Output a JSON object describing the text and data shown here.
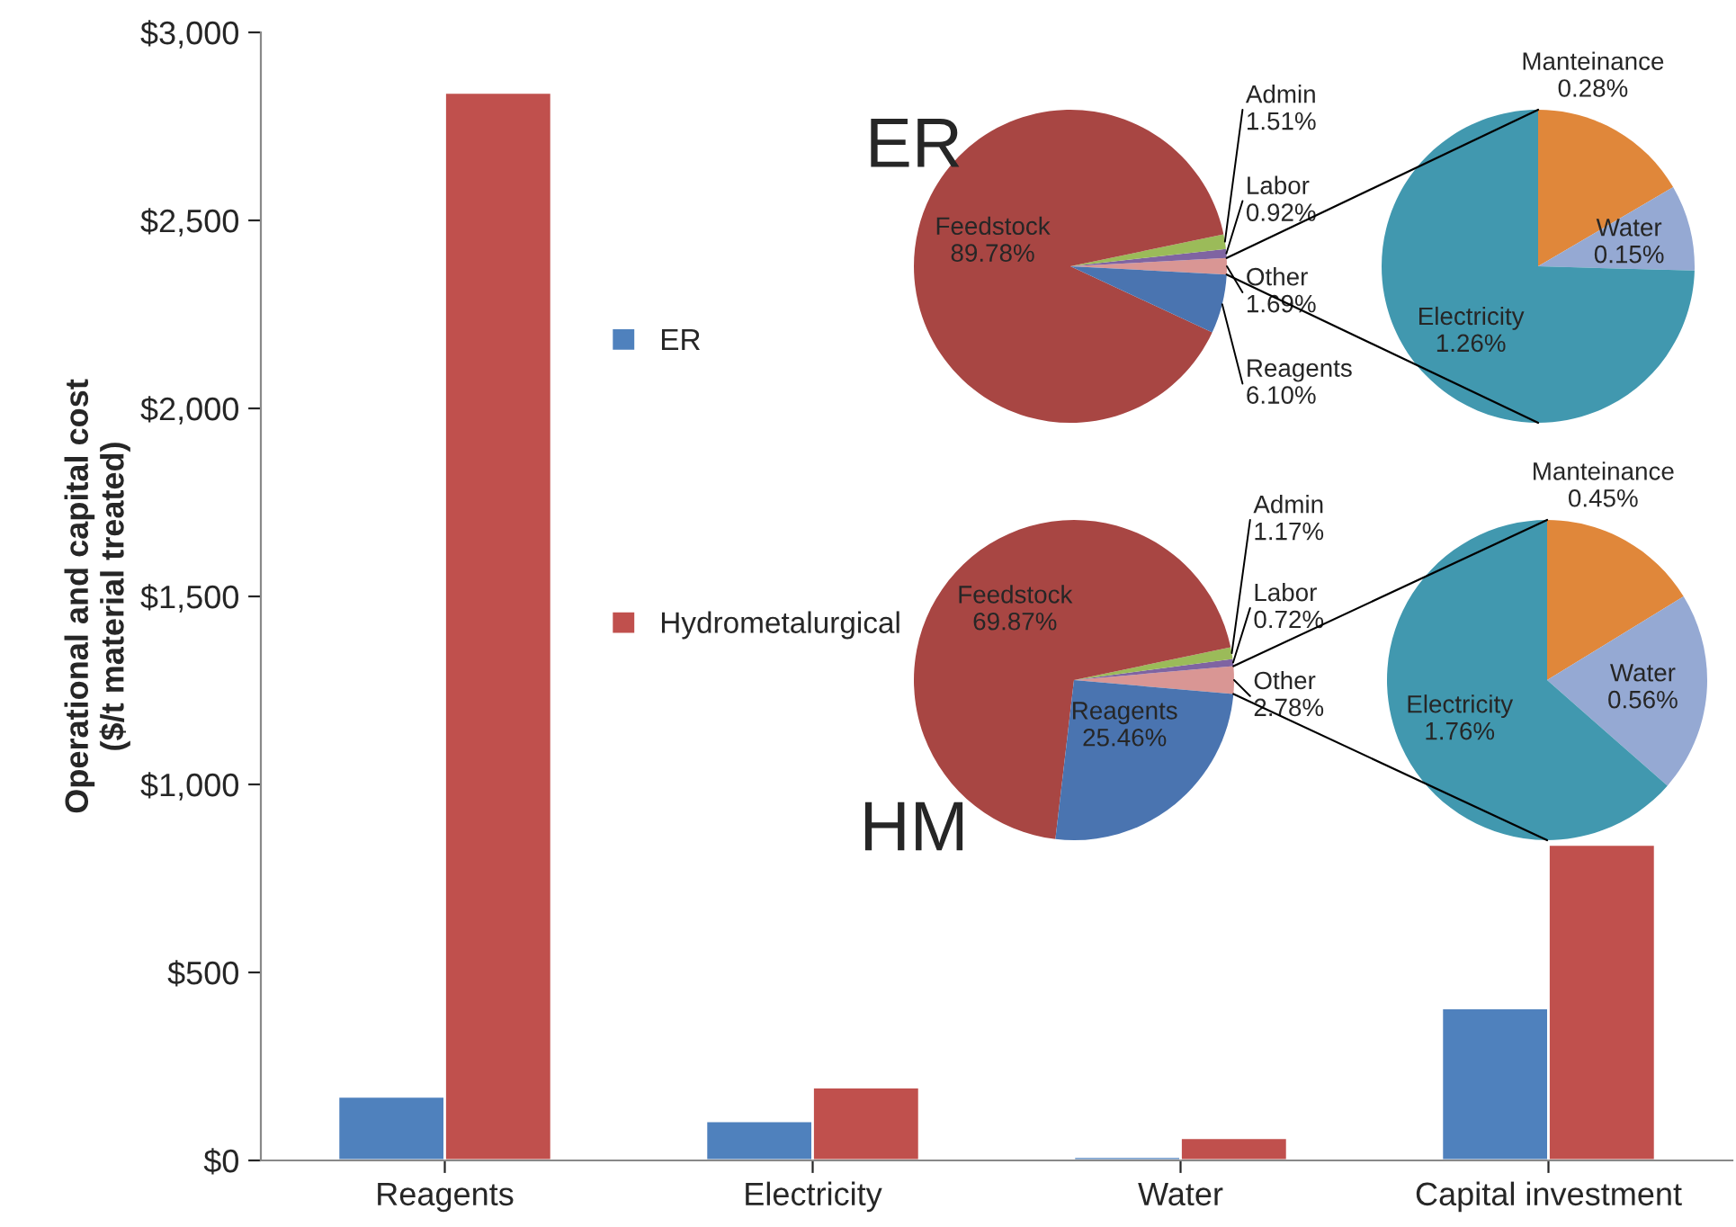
{
  "chart_data": [
    {
      "type": "bar",
      "ylabel": "Operational and capital cost\n($/t material treated)",
      "categories": [
        "Reagents",
        "Electricity",
        "Water",
        "Capital investment"
      ],
      "series": [
        {
          "name": "ER",
          "color": "#4f81bd",
          "values": [
            170,
            105,
            10,
            405
          ]
        },
        {
          "name": "Hydrometalurgical",
          "color": "#c0504d",
          "values": [
            2840,
            195,
            60,
            840
          ]
        }
      ],
      "ylim": [
        0,
        3000
      ],
      "yticks": [
        {
          "value": 0,
          "label": "$0"
        },
        {
          "value": 500,
          "label": "$500"
        },
        {
          "value": 1000,
          "label": "$1,000"
        },
        {
          "value": 1500,
          "label": "$1,500"
        },
        {
          "value": 2000,
          "label": "$2,000"
        },
        {
          "value": 2500,
          "label": "$2,500"
        },
        {
          "value": 3000,
          "label": "$3,000"
        }
      ],
      "legend": "left"
    },
    {
      "type": "pie",
      "title": "ER",
      "categories": [
        "Other",
        "Labor",
        "Admin",
        "Feedstock",
        "Reagents"
      ],
      "values": [
        1.69,
        0.92,
        1.51,
        89.78,
        6.1
      ],
      "value_labels": [
        "1.69%",
        "0.92%",
        "1.51%",
        "89.78%",
        "6.10%"
      ],
      "colors": [
        "#d99694",
        "#7f64a2",
        "#9bbb59",
        "#a84643",
        "#4a74b0"
      ]
    },
    {
      "type": "pie",
      "categories": [
        "Manteinance",
        "Water",
        "Electricity"
      ],
      "values": [
        0.28,
        0.15,
        1.26
      ],
      "value_labels": [
        "0.28%",
        "0.15%",
        "1.26%"
      ],
      "colors": [
        "#e0873a",
        "#95a9d3",
        "#4198af"
      ]
    },
    {
      "type": "pie",
      "title": "HM",
      "categories": [
        "Other",
        "Labor",
        "Admin",
        "Feedstock",
        "Reagents"
      ],
      "values": [
        2.78,
        0.72,
        1.17,
        69.87,
        25.46
      ],
      "value_labels": [
        "2.78%",
        "0.72%",
        "1.17%",
        "69.87%",
        "25.46%"
      ],
      "colors": [
        "#d99694",
        "#7f64a2",
        "#9bbb59",
        "#a84643",
        "#4a74b0"
      ]
    },
    {
      "type": "pie",
      "categories": [
        "Manteinance",
        "Water",
        "Electricity"
      ],
      "values": [
        0.45,
        0.56,
        1.76
      ],
      "value_labels": [
        "0.45%",
        "0.56%",
        "1.76%"
      ],
      "colors": [
        "#e0873a",
        "#95a9d3",
        "#4198af"
      ]
    }
  ]
}
